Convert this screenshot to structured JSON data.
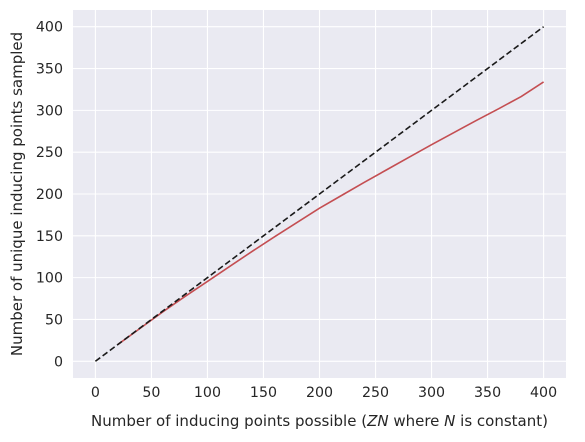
{
  "chart_data": {
    "type": "line",
    "title": "",
    "xlabel_parts": [
      {
        "text": "Number of inducing points possible (",
        "italic": false
      },
      {
        "text": "ZN",
        "italic": true
      },
      {
        "text": " where ",
        "italic": false
      },
      {
        "text": "N",
        "italic": true
      },
      {
        "text": " is constant)",
        "italic": false
      }
    ],
    "ylabel": "Number of unique inducing points sampled",
    "xlim": [
      -20,
      420
    ],
    "ylim": [
      -20,
      420
    ],
    "xticks": [
      0,
      50,
      100,
      150,
      200,
      250,
      300,
      350,
      400
    ],
    "yticks": [
      0,
      50,
      100,
      150,
      200,
      250,
      300,
      350,
      400
    ],
    "grid": true,
    "background": "#eaeaf2",
    "series": [
      {
        "style": "solid",
        "color": "#c44e52",
        "x": [
          20,
          40,
          60,
          80,
          100,
          120,
          140,
          160,
          180,
          200,
          220,
          240,
          260,
          280,
          300,
          320,
          340,
          360,
          380,
          400
        ],
        "y": [
          20,
          39.5,
          59,
          77.5,
          95.5,
          113.5,
          131.5,
          149,
          166,
          183,
          198.5,
          214,
          229,
          244,
          259,
          273.5,
          288,
          302,
          316.5,
          334
        ]
      },
      {
        "style": "dashed",
        "color": "#1a1a1a",
        "x": [
          0,
          400
        ],
        "y": [
          0,
          400
        ]
      }
    ]
  }
}
